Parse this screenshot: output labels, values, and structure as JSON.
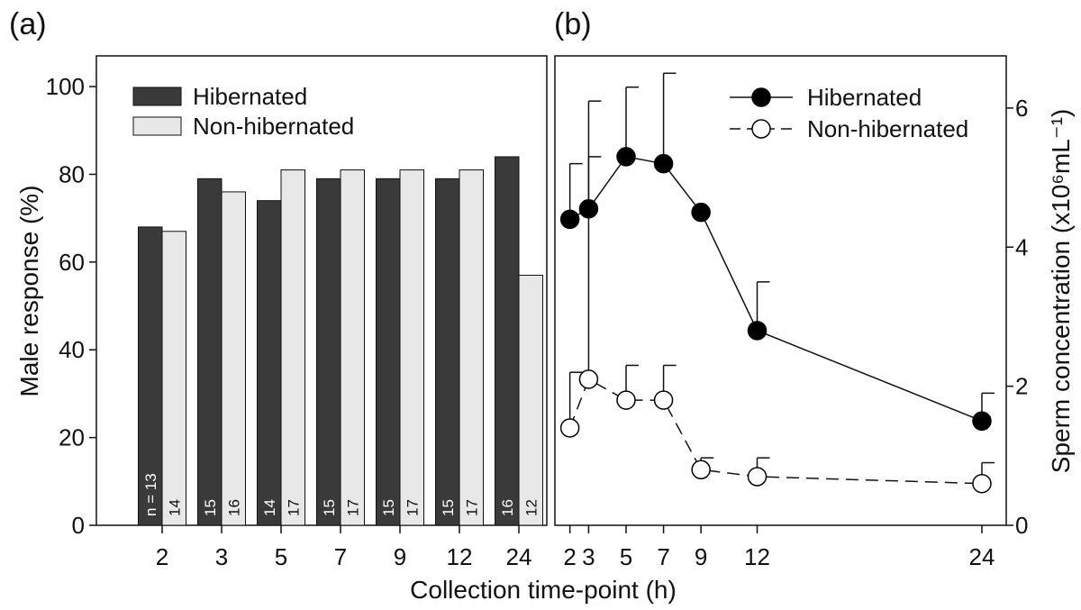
{
  "panel_a": {
    "label": "(a)"
  },
  "panel_b": {
    "label": "(b)"
  },
  "shared_xlabel": "Collection time-point (h)",
  "colors": {
    "hibernated": "#3a3a3a",
    "non_hibernated": "#e8e8e8",
    "stroke": "#111111"
  },
  "chart_data": [
    {
      "type": "bar",
      "panel": "(a)",
      "title": "",
      "xlabel": "Collection time-point (h)",
      "ylabel": "Male response (%)",
      "ylim": [
        0,
        107
      ],
      "yticks": [
        0,
        20,
        40,
        60,
        80,
        100
      ],
      "categories": [
        "2",
        "3",
        "5",
        "7",
        "9",
        "12",
        "24"
      ],
      "legend_position": "top-left",
      "series": [
        {
          "name": "Hibernated",
          "values": [
            68,
            79,
            74,
            79,
            79,
            79,
            84
          ],
          "n_labels": [
            "n = 13",
            "15",
            "14",
            "15",
            "15",
            "15",
            "16"
          ]
        },
        {
          "name": "Non-hibernated",
          "values": [
            67,
            76,
            81,
            81,
            81,
            81,
            57
          ],
          "n_labels": [
            "14",
            "16",
            "17",
            "17",
            "17",
            "17",
            "12"
          ]
        }
      ]
    },
    {
      "type": "line",
      "panel": "(b)",
      "title": "",
      "xlabel": "Collection time-point (h)",
      "ylabel": "Sperm concentration (x10⁶mL⁻¹)",
      "x": [
        2,
        3,
        5,
        7,
        9,
        12,
        24
      ],
      "xticks": [
        "2",
        "3",
        "5",
        "7",
        "9",
        "12",
        "24"
      ],
      "xlim": [
        1.2,
        25.3
      ],
      "ylim": [
        0,
        6.75
      ],
      "yticks": [
        0,
        2,
        4,
        6
      ],
      "y_axis_side": "right",
      "legend_position": "top-right",
      "series": [
        {
          "name": "Hibernated",
          "style": "solid, filled circles",
          "values": [
            4.4,
            4.55,
            5.3,
            5.2,
            4.5,
            2.8,
            1.5
          ],
          "error_upper": [
            5.2,
            6.1,
            6.3,
            6.5,
            4.5,
            3.5,
            1.9
          ]
        },
        {
          "name": "Non-hibernated",
          "style": "dashed, open circles",
          "values": [
            1.4,
            2.1,
            1.8,
            1.8,
            0.8,
            0.7,
            0.6
          ],
          "error_upper": [
            2.2,
            5.3,
            2.3,
            2.3,
            0.97,
            0.97,
            0.9
          ]
        }
      ]
    }
  ]
}
